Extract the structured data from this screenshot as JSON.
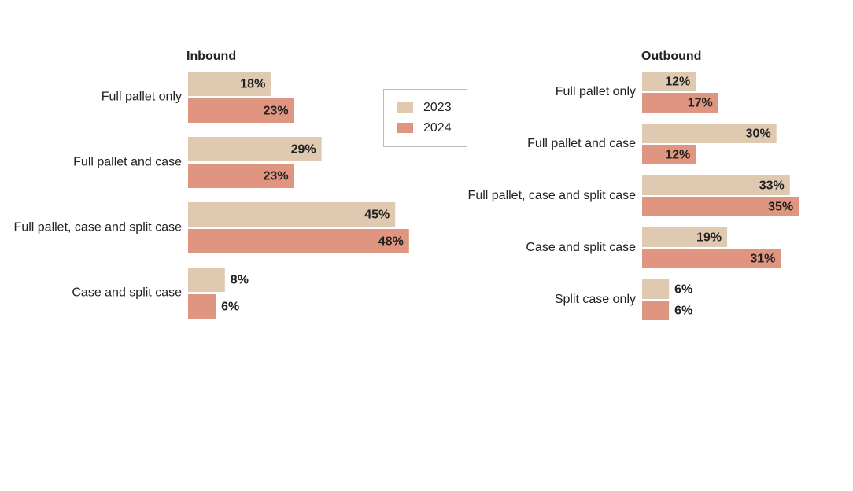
{
  "chart_data": [
    {
      "type": "hbar",
      "title": "Inbound",
      "categories": [
        "Full pallet only",
        "Full pallet and case",
        "Full pallet, case and split case",
        "Case and split case"
      ],
      "series": [
        {
          "name": "2023",
          "color": "#dfcab1",
          "values": [
            18,
            29,
            45,
            8
          ],
          "value_labels": [
            "18%",
            "29%",
            "45%",
            "8%"
          ]
        },
        {
          "name": "2024",
          "color": "#e09580",
          "values": [
            23,
            23,
            48,
            6
          ],
          "value_labels": [
            "23%",
            "23%",
            "48%",
            "6%"
          ]
        }
      ]
    },
    {
      "type": "hbar",
      "title": "Outbound",
      "categories": [
        "Full pallet only",
        "Full pallet and case",
        "Full pallet, case and split case",
        "Case and split case",
        "Split case only"
      ],
      "series": [
        {
          "color": "#dfcab1",
          "values": [
            12,
            30,
            33,
            19,
            6
          ],
          "value_labels": [
            "12%",
            "30%",
            "33%",
            "19%",
            "6%"
          ]
        },
        {
          "color": "#e09580",
          "values": [
            17,
            12,
            35,
            31,
            6
          ],
          "value_labels": [
            "17%",
            "12%",
            "35%",
            "31%",
            "6%"
          ]
        }
      ]
    }
  ]
}
